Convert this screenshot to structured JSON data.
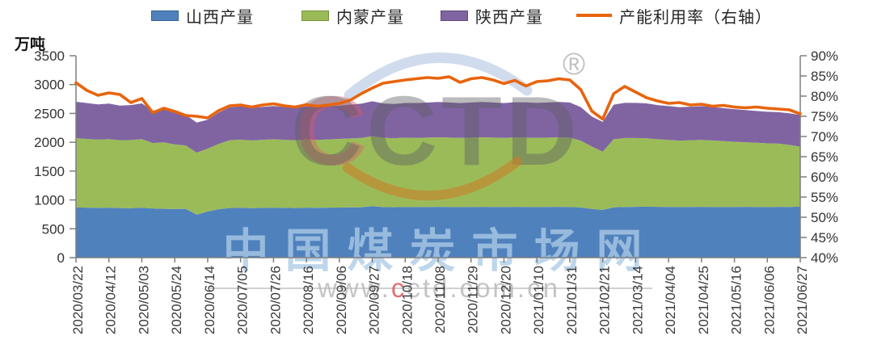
{
  "unit_label": "万吨",
  "legend": [
    {
      "label": "山西产量",
      "color": "#4F81BD",
      "border": "#36618F",
      "type": "box"
    },
    {
      "label": "内蒙产量",
      "color": "#9BBB59",
      "border": "#76923C",
      "type": "box"
    },
    {
      "label": "陕西产量",
      "color": "#8064A2",
      "border": "#5F4B78",
      "type": "box"
    },
    {
      "label": "产能利用率（右轴）",
      "color": "#E8640C",
      "type": "line"
    }
  ],
  "watermark": {
    "logo_text": "CCTD",
    "registered_mark": "®",
    "site_name": "中国煤炭市场网",
    "url_prefix": "www.",
    "url_red_letter": "c",
    "url_suffix": "ctd.com.cn"
  },
  "chart_data": {
    "type": "area",
    "stacked": true,
    "grid": false,
    "legend_position": "top",
    "x_unit": "week",
    "x_label_every": 3,
    "x": [
      "2020/03/22",
      "2020/03/29",
      "2020/04/05",
      "2020/04/12",
      "2020/04/19",
      "2020/04/26",
      "2020/05/03",
      "2020/05/10",
      "2020/05/17",
      "2020/05/24",
      "2020/05/31",
      "2020/06/07",
      "2020/06/14",
      "2020/06/21",
      "2020/06/28",
      "2020/07/05",
      "2020/07/12",
      "2020/07/19",
      "2020/07/26",
      "2020/08/02",
      "2020/08/09",
      "2020/08/16",
      "2020/08/23",
      "2020/08/30",
      "2020/09/06",
      "2020/09/13",
      "2020/09/20",
      "2020/09/27",
      "2020/10/04",
      "2020/10/11",
      "2020/10/18",
      "2020/10/25",
      "2020/11/01",
      "2020/11/08",
      "2020/11/15",
      "2020/11/22",
      "2020/11/29",
      "2020/12/06",
      "2020/12/13",
      "2020/12/20",
      "2020/12/27",
      "2021/01/03",
      "2021/01/10",
      "2021/01/17",
      "2021/01/24",
      "2021/01/31",
      "2021/02/07",
      "2021/02/14",
      "2021/02/21",
      "2021/02/28",
      "2021/03/07",
      "2021/03/14",
      "2021/03/21",
      "2021/03/28",
      "2021/04/04",
      "2021/04/11",
      "2021/04/18",
      "2021/04/25",
      "2021/05/02",
      "2021/05/09",
      "2021/05/16",
      "2021/05/23",
      "2021/05/30",
      "2021/06/06",
      "2021/06/13",
      "2021/06/20",
      "2021/06/27"
    ],
    "left_axis": {
      "title": "万吨",
      "min": 0,
      "max": 3500,
      "tick_step": 500
    },
    "right_axis": {
      "min": 40,
      "max": 90,
      "tick_step": 5,
      "format": "percent"
    },
    "series": [
      {
        "name": "山西产量",
        "type": "area",
        "axis": "left",
        "color": "#4F81BD",
        "values": [
          870,
          866,
          862,
          866,
          860,
          858,
          864,
          852,
          846,
          844,
          846,
          745,
          800,
          840,
          860,
          864,
          858,
          863,
          866,
          863,
          860,
          866,
          863,
          866,
          868,
          871,
          874,
          893,
          877,
          874,
          879,
          877,
          879,
          881,
          879,
          877,
          879,
          881,
          879,
          877,
          881,
          879,
          877,
          879,
          881,
          879,
          869,
          846,
          828,
          872,
          878,
          881,
          883,
          881,
          879,
          877,
          879,
          881,
          879,
          877,
          879,
          881,
          879,
          877,
          881,
          879,
          883
        ]
      },
      {
        "name": "内蒙产量",
        "type": "area",
        "axis": "left",
        "color": "#9BBB59",
        "values": [
          1200,
          1192,
          1184,
          1188,
          1176,
          1180,
          1190,
          1135,
          1152,
          1120,
          1098,
          1075,
          1090,
          1130,
          1176,
          1182,
          1174,
          1180,
          1186,
          1180,
          1174,
          1184,
          1178,
          1184,
          1190,
          1196,
          1202,
          1212,
          1200,
          1196,
          1202,
          1199,
          1202,
          1205,
          1202,
          1199,
          1202,
          1205,
          1202,
          1199,
          1203,
          1201,
          1199,
          1201,
          1204,
          1201,
          1160,
          1080,
          1010,
          1180,
          1195,
          1192,
          1186,
          1172,
          1162,
          1152,
          1156,
          1160,
          1152,
          1142,
          1130,
          1120,
          1112,
          1104,
          1096,
          1075,
          1040
        ]
      },
      {
        "name": "陕西产量",
        "type": "area",
        "axis": "left",
        "color": "#8064A2",
        "values": [
          632,
          622,
          610,
          616,
          600,
          606,
          620,
          560,
          585,
          545,
          530,
          522,
          500,
          545,
          570,
          575,
          565,
          570,
          576,
          570,
          563,
          572,
          567,
          572,
          578,
          585,
          592,
          605,
          596,
          593,
          600,
          603,
          607,
          612,
          608,
          604,
          608,
          612,
          608,
          604,
          609,
          612,
          607,
          609,
          613,
          610,
          580,
          520,
          516,
          600,
          610,
          610,
          605,
          592,
          585,
          578,
          582,
          586,
          580,
          572,
          565,
          558,
          552,
          548,
          545,
          548,
          550
        ]
      },
      {
        "name": "产能利用率（右轴）",
        "type": "line",
        "axis": "right",
        "color": "#E8640C",
        "values": [
          83.3,
          81.4,
          80.2,
          80.8,
          80.4,
          78.4,
          79.4,
          75.9,
          77.0,
          76.2,
          75.2,
          75.0,
          74.6,
          76.4,
          77.6,
          77.8,
          77.3,
          77.8,
          78.1,
          77.6,
          77.3,
          77.9,
          77.5,
          77.8,
          78.2,
          79.0,
          80.6,
          82.0,
          83.2,
          83.6,
          84.0,
          84.3,
          84.6,
          84.4,
          84.8,
          83.4,
          84.3,
          84.6,
          84.0,
          83.1,
          83.9,
          82.5,
          83.6,
          83.8,
          84.3,
          84.0,
          81.6,
          76.3,
          74.3,
          80.6,
          82.4,
          81.0,
          79.6,
          78.8,
          78.2,
          78.4,
          77.8,
          78.0,
          77.5,
          77.7,
          77.3,
          77.1,
          77.3,
          77.0,
          76.8,
          76.6,
          75.6
        ]
      }
    ]
  }
}
